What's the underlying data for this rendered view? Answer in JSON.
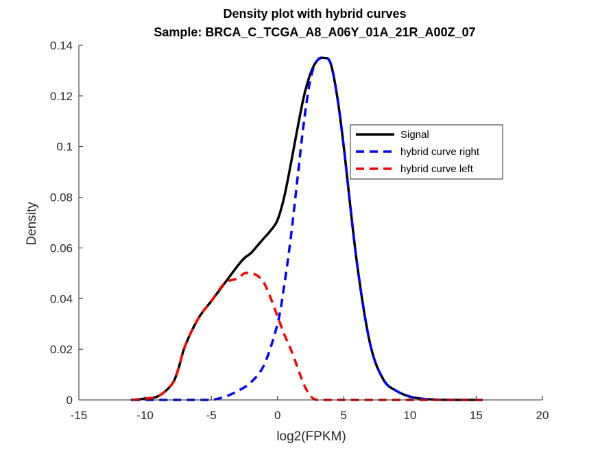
{
  "chart_data": {
    "type": "line",
    "title": "Density plot with hybrid curves",
    "subtitle": "Sample: BRCA_C_TCGA_A8_A06Y_01A_21R_A00Z_07",
    "xlabel": "log2(FPKM)",
    "ylabel": "Density",
    "xlim": [
      -15,
      20
    ],
    "ylim": [
      0,
      0.14
    ],
    "xticks": [
      -15,
      -10,
      -5,
      0,
      5,
      10,
      15,
      20
    ],
    "yticks": [
      0,
      0.02,
      0.04,
      0.06,
      0.08,
      0.1,
      0.12,
      0.14
    ],
    "xtick_labels": [
      "-15",
      "-10",
      "-5",
      "0",
      "5",
      "10",
      "15",
      "20"
    ],
    "ytick_labels": [
      "0",
      "0.02",
      "0.04",
      "0.06",
      "0.08",
      "0.1",
      "0.12",
      "0.14"
    ],
    "grid": false,
    "legend_position": "upper-right-inside",
    "series": [
      {
        "name": "Signal",
        "color": "#000000",
        "style": "solid",
        "x": [
          -11,
          -10,
          -9,
          -8,
          -7.5,
          -7,
          -6,
          -5,
          -4,
          -3,
          -2.5,
          -2,
          -1.5,
          -1,
          -0.5,
          0,
          0.5,
          1,
          1.5,
          2,
          2.5,
          3,
          3.5,
          4,
          4.5,
          5,
          6,
          7,
          8,
          9,
          10,
          11,
          12,
          13,
          14,
          15
        ],
        "values": [
          0,
          0.0005,
          0.0015,
          0.006,
          0.012,
          0.021,
          0.032,
          0.039,
          0.046,
          0.053,
          0.056,
          0.058,
          0.061,
          0.064,
          0.067,
          0.071,
          0.08,
          0.093,
          0.107,
          0.12,
          0.129,
          0.134,
          0.135,
          0.133,
          0.12,
          0.1,
          0.054,
          0.022,
          0.008,
          0.0035,
          0.0013,
          0.0004,
          0.0001,
          0,
          0,
          0
        ]
      },
      {
        "name": "hybrid curve right",
        "color": "#0000ff",
        "style": "dashed",
        "x": [
          -11,
          -10,
          -9,
          -8,
          -7,
          -6,
          -5,
          -4,
          -3,
          -2,
          -1,
          0,
          0.5,
          1,
          1.5,
          2,
          2.5,
          3,
          3.5,
          4,
          4.5,
          5,
          6,
          7,
          8,
          9,
          10,
          11,
          12,
          13,
          14,
          15.5
        ],
        "values": [
          0,
          0,
          0,
          0,
          0,
          0,
          0,
          0.0012,
          0.0035,
          0.007,
          0.014,
          0.03,
          0.045,
          0.064,
          0.087,
          0.11,
          0.127,
          0.134,
          0.135,
          0.133,
          0.12,
          0.1,
          0.054,
          0.022,
          0.008,
          0.0035,
          0.0013,
          0.0004,
          0.0001,
          0,
          0,
          0
        ]
      },
      {
        "name": "hybrid curve left",
        "color": "#ff0000",
        "style": "dashed",
        "x": [
          -11,
          -10,
          -9,
          -8,
          -7.5,
          -7,
          -6,
          -5,
          -4,
          -3,
          -2.5,
          -2,
          -1.5,
          -1,
          -0.5,
          0,
          0.5,
          1,
          1.5,
          2,
          2.5,
          3,
          4,
          5,
          6,
          8,
          10,
          12,
          14,
          15.5
        ],
        "values": [
          0,
          0.0005,
          0.0015,
          0.006,
          0.012,
          0.021,
          0.032,
          0.039,
          0.046,
          0.048,
          0.05,
          0.05,
          0.049,
          0.046,
          0.04,
          0.033,
          0.026,
          0.02,
          0.013,
          0.006,
          0.0015,
          0,
          0,
          0,
          0,
          0,
          0,
          0,
          0,
          0
        ]
      }
    ]
  }
}
